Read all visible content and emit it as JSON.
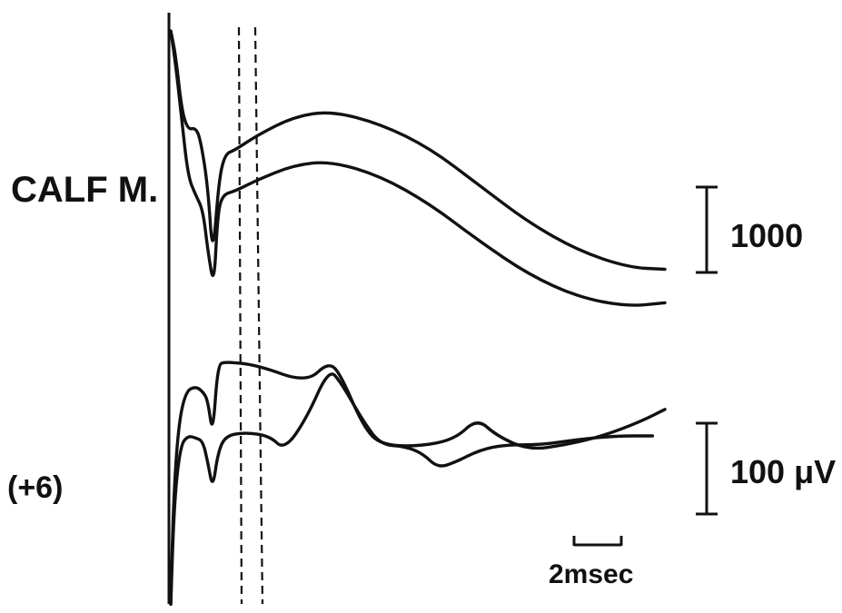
{
  "chart_data": {
    "type": "line",
    "description_labels": {
      "upper_label": "CALF M.",
      "lower_label": "(+6)"
    },
    "scale_bars": {
      "upper_amplitude": "1000",
      "lower_amplitude": "100 μV",
      "time": "2msec"
    },
    "time_scale_msec": 2,
    "dashed_cursors": 2,
    "panels": [
      {
        "label": "CALF M.",
        "amplitude_scale": "1000",
        "series": [
          {
            "points": [
              [
                0.0,
                0.98
              ],
              [
                0.2,
                0.85
              ],
              [
                0.45,
                0.55
              ],
              [
                0.7,
                0.45
              ],
              [
                1.0,
                0.46
              ],
              [
                1.2,
                0.4
              ],
              [
                1.5,
                0.15
              ],
              [
                1.7,
                -0.25
              ],
              [
                1.95,
                0.18
              ],
              [
                2.2,
                0.32
              ],
              [
                2.6,
                0.34
              ],
              [
                3.5,
                0.42
              ],
              [
                5.0,
                0.52
              ],
              [
                6.5,
                0.55
              ],
              [
                8.5,
                0.48
              ],
              [
                10.5,
                0.35
              ],
              [
                12.5,
                0.15
              ],
              [
                14.5,
                -0.05
              ],
              [
                16.5,
                -0.2
              ],
              [
                18.5,
                -0.29
              ],
              [
                20.0,
                -0.3
              ]
            ]
          },
          {
            "points": [
              [
                0.0,
                0.98
              ],
              [
                0.2,
                0.8
              ],
              [
                0.45,
                0.5
              ],
              [
                0.7,
                0.2
              ],
              [
                1.0,
                0.1
              ],
              [
                1.3,
                0.02
              ],
              [
                1.5,
                -0.2
              ],
              [
                1.75,
                -0.4
              ],
              [
                1.9,
                0.0
              ],
              [
                2.1,
                0.1
              ],
              [
                2.6,
                0.12
              ],
              [
                3.5,
                0.18
              ],
              [
                5.0,
                0.26
              ],
              [
                6.5,
                0.28
              ],
              [
                8.5,
                0.2
              ],
              [
                10.5,
                0.05
              ],
              [
                12.5,
                -0.15
              ],
              [
                14.5,
                -0.33
              ],
              [
                16.5,
                -0.45
              ],
              [
                18.5,
                -0.5
              ],
              [
                20.0,
                -0.48
              ]
            ]
          }
        ]
      },
      {
        "label": "(+6)",
        "amplitude_scale": "100 μV",
        "series": [
          {
            "points": [
              [
                0.0,
                -0.95
              ],
              [
                0.1,
                -0.4
              ],
              [
                0.3,
                0.05
              ],
              [
                0.6,
                0.25
              ],
              [
                1.0,
                0.28
              ],
              [
                1.3,
                0.25
              ],
              [
                1.5,
                0.2
              ],
              [
                1.7,
                0.0
              ],
              [
                1.9,
                0.4
              ],
              [
                2.2,
                0.42
              ],
              [
                3.5,
                0.4
              ],
              [
                5.5,
                0.3
              ],
              [
                6.4,
                0.42
              ],
              [
                6.9,
                0.34
              ],
              [
                7.8,
                0.05
              ],
              [
                8.5,
                -0.05
              ],
              [
                10.0,
                -0.06
              ],
              [
                11.5,
                -0.02
              ],
              [
                12.4,
                0.1
              ],
              [
                13.2,
                0.0
              ],
              [
                14.5,
                -0.08
              ],
              [
                16.0,
                -0.05
              ],
              [
                17.5,
                0.0
              ],
              [
                19.0,
                0.08
              ],
              [
                20.0,
                0.15
              ]
            ]
          },
          {
            "points": [
              [
                0.0,
                -0.95
              ],
              [
                0.15,
                -0.35
              ],
              [
                0.4,
                -0.05
              ],
              [
                0.7,
                0.0
              ],
              [
                1.0,
                -0.01
              ],
              [
                1.3,
                -0.03
              ],
              [
                1.5,
                -0.15
              ],
              [
                1.7,
                -0.3
              ],
              [
                1.9,
                -0.1
              ],
              [
                2.2,
                0.0
              ],
              [
                3.0,
                0.02
              ],
              [
                4.0,
                0.0
              ],
              [
                4.6,
                -0.08
              ],
              [
                5.5,
                0.1
              ],
              [
                6.4,
                0.38
              ],
              [
                6.9,
                0.3
              ],
              [
                7.8,
                0.08
              ],
              [
                8.5,
                -0.05
              ],
              [
                9.5,
                -0.06
              ],
              [
                10.2,
                -0.1
              ],
              [
                10.8,
                -0.18
              ],
              [
                11.5,
                -0.15
              ],
              [
                12.5,
                -0.08
              ],
              [
                13.5,
                -0.05
              ],
              [
                15.0,
                -0.05
              ],
              [
                16.5,
                -0.02
              ],
              [
                18.0,
                0.0
              ],
              [
                19.5,
                0.0
              ]
            ]
          }
        ]
      }
    ],
    "xlim": [
      0,
      20
    ],
    "ylim": [
      -1,
      1
    ]
  }
}
